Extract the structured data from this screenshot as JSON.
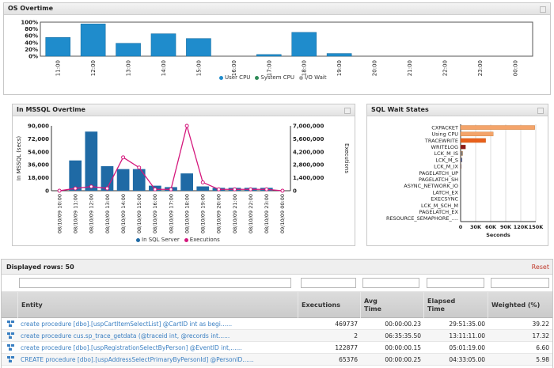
{
  "os_panel": {
    "title": "OS Overtime",
    "legend": [
      {
        "label": "User CPU",
        "color": "#1f8ccc"
      },
      {
        "label": "System CPU",
        "color": "#2e8b57"
      },
      {
        "label": "I/O Wait",
        "color": "#a8a8a8"
      }
    ]
  },
  "mssql_panel": {
    "title": "In MSSQL Overtime",
    "legend": [
      {
        "label": "In SQL Server",
        "color": "#1f6aa5"
      },
      {
        "label": "Executions",
        "color": "#d4177c"
      }
    ]
  },
  "wait_panel": {
    "title": "SQL Wait States"
  },
  "grid": {
    "displayed_label": "Displayed rows: 50",
    "reset_label": "Reset",
    "columns": [
      "Entity",
      "Executions",
      "Avg Time",
      "Elapsed Time",
      "Weighted (%)"
    ],
    "rows": [
      {
        "entity": "create procedure [dbo].[uspCartItemSelectList] @CartID int as begi......",
        "executions": "469737",
        "avg": "00:00:00.23",
        "elapsed": "29:51:35.00",
        "weighted": "39.22"
      },
      {
        "entity": "create procedure cus.sp_trace_getdata (@traceid int, @records int......",
        "executions": "2",
        "avg": "06:35:35.50",
        "elapsed": "13:11:11.00",
        "weighted": "17.32"
      },
      {
        "entity": "create procedure [dbo].[uspRegistrationSelectByPerson] @EventID int,......",
        "executions": "122877",
        "avg": "00:00:00.15",
        "elapsed": "05:01:19.00",
        "weighted": "6.60"
      },
      {
        "entity": "CREATE procedure [dbo].[uspAddressSelectPrimaryByPersonId] @PersonID......",
        "executions": "65376",
        "avg": "00:00:00.25",
        "elapsed": "04:33:05.00",
        "weighted": "5.98"
      }
    ]
  },
  "chart_data": [
    {
      "type": "bar",
      "title": "OS Overtime",
      "categories": [
        "11:00",
        "12:00",
        "13:00",
        "14:00",
        "15:00",
        "16:00",
        "17:00",
        "18:00",
        "19:00",
        "20:00",
        "21:00",
        "22:00",
        "23:00",
        "00:00"
      ],
      "series": [
        {
          "name": "User CPU",
          "values": [
            55,
            95,
            38,
            66,
            52,
            0,
            5,
            70,
            8,
            0,
            0,
            0,
            0,
            0
          ]
        },
        {
          "name": "System CPU",
          "values": [
            0,
            0,
            0,
            0,
            0,
            0,
            0,
            0,
            0,
            0,
            0,
            0,
            0,
            0
          ]
        },
        {
          "name": "I/O Wait",
          "values": [
            0,
            0,
            0,
            0,
            0,
            0,
            0,
            0,
            0,
            0,
            0,
            0,
            0,
            0
          ]
        }
      ],
      "yticks": [
        "100%",
        "80%",
        "60%",
        "40%",
        "20%",
        "0%"
      ],
      "ylim": [
        0,
        100
      ],
      "legend": "bottom"
    },
    {
      "type": "bar",
      "title": "In MSSQL Overtime",
      "categories": [
        "08/10/09 10:00",
        "08/10/09 11:00",
        "08/10/09 12:00",
        "08/10/09 13:00",
        "08/10/09 14:00",
        "08/10/09 15:00",
        "08/10/09 16:00",
        "08/10/09 17:00",
        "08/10/09 18:00",
        "08/10/09 19:00",
        "08/10/09 20:00",
        "08/10/09 21:00",
        "08/10/09 22:00",
        "08/10/09 23:00",
        "09/10/09 00:00"
      ],
      "series": [
        {
          "name": "In SQL Server",
          "axis": "left",
          "values": [
            0,
            42000,
            82000,
            34000,
            30000,
            30000,
            7000,
            5000,
            24000,
            6000,
            4000,
            4000,
            4000,
            4000,
            0
          ]
        },
        {
          "name": "Executions",
          "axis": "right",
          "type": "line",
          "values": [
            0,
            250000,
            450000,
            250000,
            3600000,
            2500000,
            150000,
            150000,
            7000000,
            900000,
            150000,
            150000,
            150000,
            150000,
            0
          ]
        }
      ],
      "ylabel": "In MSSQL (secs)",
      "y2label": "Executions",
      "yticks": [
        "90,000",
        "72,000",
        "54,000",
        "36,000",
        "18,000",
        "0"
      ],
      "y2ticks": [
        "7,000,000",
        "5,600,000",
        "4,200,000",
        "2,800,000",
        "1,400,000",
        "0"
      ],
      "ylim": [
        0,
        90000
      ],
      "y2lim": [
        0,
        7000000
      ],
      "legend": "bottom"
    },
    {
      "type": "bar",
      "orientation": "horizontal",
      "title": "SQL Wait States",
      "categories": [
        "CXPACKET",
        "Using CPU",
        "TRACEWRITE",
        "WRITELOG",
        "LCK_M_IS",
        "LCK_M_S",
        "LCK_M_IX",
        "PAGELATCH_UP",
        "PAGELATCH_SH",
        "ASYNC_NETWORK_IO",
        "LATCH_EX",
        "EXECSYNC",
        "LCK_M_SCH_M",
        "PAGELATCH_EX",
        "RESOURCE_SEMAPHORE_...."
      ],
      "values": [
        148000,
        65000,
        50000,
        10000,
        4000,
        3000,
        1500,
        0,
        0,
        0,
        0,
        0,
        0,
        0,
        0
      ],
      "colors": [
        "#f4a46a",
        "#f4a46a",
        "#e8601c",
        "#8b1a1a",
        "#7a7a7a",
        "#3a5fa8",
        "#3a5fa8",
        "#ccc",
        "#ccc",
        "#ccc",
        "#ccc",
        "#ccc",
        "#ccc",
        "#ccc",
        "#ccc"
      ],
      "xticks": [
        "0",
        "30K",
        "60K",
        "90K",
        "120K",
        "150K"
      ],
      "xlabel": "Seconds",
      "xlim": [
        0,
        150000
      ]
    }
  ]
}
